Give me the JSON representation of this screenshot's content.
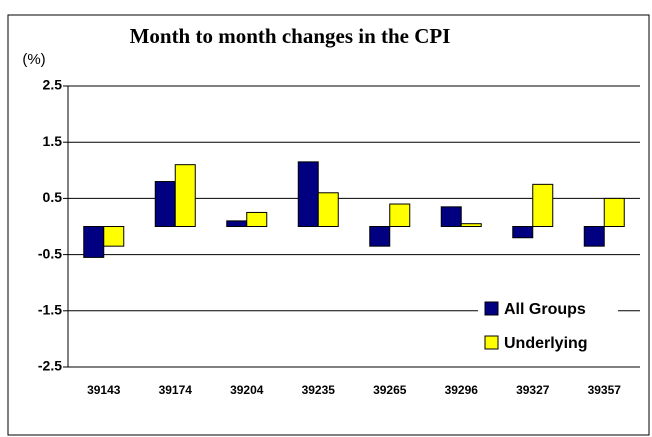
{
  "chart_data": {
    "type": "bar",
    "title": "Month to month changes in the CPI",
    "y_label": "(%)",
    "categories": [
      "39143",
      "39174",
      "39204",
      "39235",
      "39265",
      "39296",
      "39327",
      "39357"
    ],
    "series": [
      {
        "name": "All Groups",
        "color": "#000080",
        "values": [
          -0.55,
          0.8,
          0.1,
          1.15,
          -0.35,
          0.35,
          -0.2,
          -0.35
        ]
      },
      {
        "name": "Underlying",
        "color": "#ffff00",
        "values": [
          -0.35,
          1.1,
          0.25,
          0.6,
          0.4,
          0.05,
          0.75,
          0.5
        ]
      }
    ],
    "ylim": [
      -2.5,
      2.5
    ],
    "yticks": [
      -2.5,
      -1.5,
      -0.5,
      0.5,
      1.5,
      2.5
    ],
    "grid": true,
    "legend": "lower right"
  }
}
